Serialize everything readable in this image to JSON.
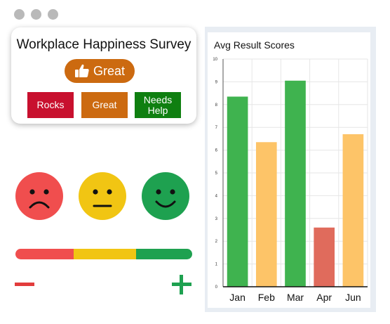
{
  "window": {
    "dots": [
      "#b9b9b9",
      "#b9b9b9",
      "#b9b9b9"
    ]
  },
  "survey": {
    "title": "Workplace Happiness Survey",
    "selected": {
      "label": "Great",
      "icon": "thumbs-up-icon"
    },
    "options": [
      {
        "label": "Rocks",
        "color": "#c8102e"
      },
      {
        "label": "Great",
        "color": "#cc6a10"
      },
      {
        "label": "Needs Help",
        "color": "#0f7f10"
      }
    ]
  },
  "faces": [
    {
      "name": "sad",
      "color": "#f04e4e"
    },
    {
      "name": "neutral",
      "color": "#f1c513"
    },
    {
      "name": "happy",
      "color": "#1ea150"
    }
  ],
  "scale": {
    "colors": [
      "#f04e4e",
      "#f1c513",
      "#1ea150"
    ],
    "decrease_icon": "minus-icon",
    "increase_icon": "plus-icon"
  },
  "chart_data": {
    "type": "bar",
    "title": "Avg Result Scores",
    "categories": [
      "Jan",
      "Feb",
      "Mar",
      "Apr",
      "Jun"
    ],
    "values": [
      8.35,
      6.35,
      9.05,
      2.6,
      6.7
    ],
    "bar_colors": [
      "#3fb34f",
      "#fdc468",
      "#3fb34f",
      "#e06b5c",
      "#fdc468"
    ],
    "yticks": [
      "0",
      "1",
      "2",
      "3",
      "4",
      "5",
      "6",
      "7",
      "8",
      "9",
      "10"
    ],
    "ylim": [
      0,
      10
    ],
    "grid": true
  }
}
